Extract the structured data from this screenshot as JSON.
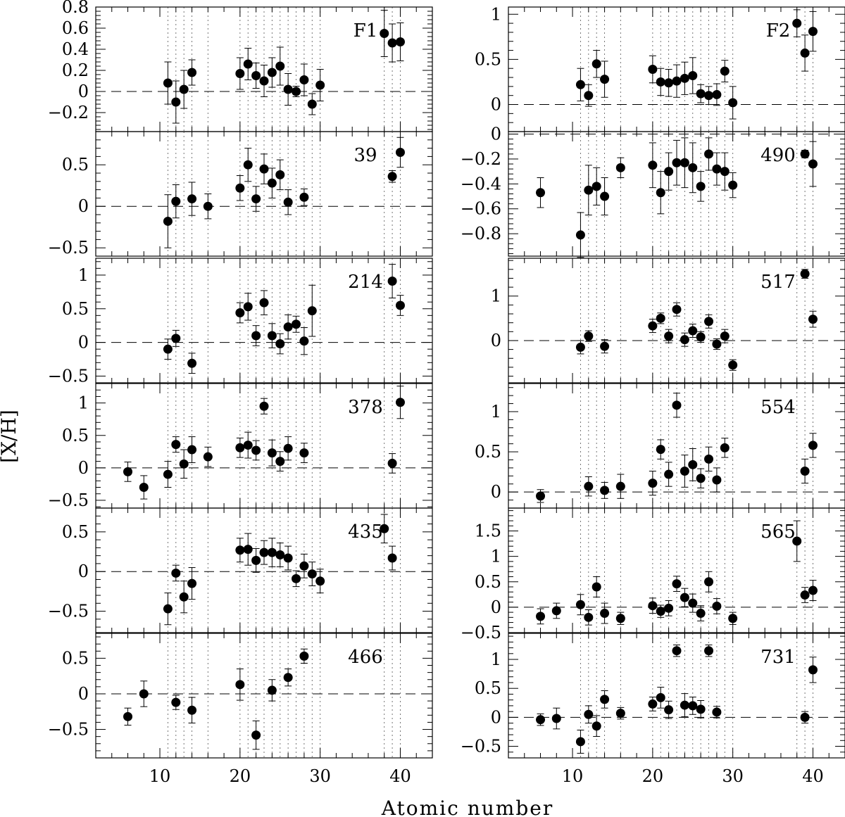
{
  "chart_data": {
    "type": "scatter",
    "ylabel": "[X/H]",
    "xlabel": "Atomic number",
    "xlim": [
      2,
      44
    ],
    "x_ticks": [
      10,
      20,
      30,
      40
    ],
    "reference_lines_x": [
      11,
      12,
      13,
      14,
      16,
      20,
      21,
      22,
      23,
      24,
      25,
      26,
      27,
      28,
      29,
      30,
      38,
      39,
      40
    ],
    "zero_line": 0,
    "panels": [
      {
        "label": "F1",
        "column": "left",
        "ylim": [
          -0.38,
          0.8
        ],
        "yticks": [
          -0.2,
          0,
          0.2,
          0.4,
          0.6,
          0.8
        ],
        "points": [
          [
            11,
            0.08,
            0.2
          ],
          [
            12,
            -0.1,
            0.2
          ],
          [
            13,
            0.02,
            0.18
          ],
          [
            14,
            0.18,
            0.12
          ],
          [
            20,
            0.17,
            0.15
          ],
          [
            21,
            0.26,
            0.15
          ],
          [
            22,
            0.15,
            0.12
          ],
          [
            23,
            0.1,
            0.15
          ],
          [
            24,
            0.18,
            0.14
          ],
          [
            25,
            0.24,
            0.18
          ],
          [
            26,
            0.02,
            0.15
          ],
          [
            27,
            0.0,
            0.05
          ],
          [
            28,
            0.11,
            0.15
          ],
          [
            29,
            -0.12,
            0.1
          ],
          [
            30,
            0.06,
            0.15
          ],
          [
            38,
            0.55,
            0.22
          ],
          [
            39,
            0.46,
            0.18
          ],
          [
            40,
            0.47,
            0.18
          ]
        ]
      },
      {
        "label": "F2",
        "column": "right",
        "ylim": [
          -0.3,
          1.08
        ],
        "yticks": [
          0,
          0.5,
          1
        ],
        "points": [
          [
            11,
            0.22,
            0.18
          ],
          [
            12,
            0.1,
            0.12
          ],
          [
            13,
            0.45,
            0.15
          ],
          [
            14,
            0.28,
            0.2
          ],
          [
            20,
            0.39,
            0.15
          ],
          [
            21,
            0.25,
            0.15
          ],
          [
            22,
            0.24,
            0.15
          ],
          [
            23,
            0.26,
            0.18
          ],
          [
            24,
            0.29,
            0.18
          ],
          [
            25,
            0.32,
            0.2
          ],
          [
            26,
            0.12,
            0.1
          ],
          [
            27,
            0.1,
            0.1
          ],
          [
            28,
            0.11,
            0.12
          ],
          [
            29,
            0.37,
            0.12
          ],
          [
            30,
            0.02,
            0.18
          ],
          [
            38,
            0.9,
            0.15
          ],
          [
            39,
            0.57,
            0.2
          ],
          [
            40,
            0.81,
            0.22
          ]
        ]
      },
      {
        "label": "39",
        "column": "left",
        "ylim": [
          -0.6,
          0.9
        ],
        "yticks": [
          -0.5,
          0,
          0.5
        ],
        "points": [
          [
            11,
            -0.18,
            0.32
          ],
          [
            12,
            0.06,
            0.2
          ],
          [
            14,
            0.09,
            0.2
          ],
          [
            16,
            0.0,
            0.15
          ],
          [
            20,
            0.22,
            0.15
          ],
          [
            21,
            0.5,
            0.2
          ],
          [
            22,
            0.09,
            0.15
          ],
          [
            23,
            0.45,
            0.18
          ],
          [
            24,
            0.28,
            0.18
          ],
          [
            25,
            0.38,
            0.18
          ],
          [
            26,
            0.05,
            0.15
          ],
          [
            28,
            0.11,
            0.1
          ],
          [
            39,
            0.36,
            0.07
          ],
          [
            40,
            0.65,
            0.18
          ]
        ]
      },
      {
        "label": "490",
        "column": "right",
        "ylim": [
          -0.98,
          0.02
        ],
        "yticks": [
          -0.8,
          -0.6,
          -0.4,
          -0.2,
          0
        ],
        "points": [
          [
            6,
            -0.47,
            0.12
          ],
          [
            11,
            -0.81,
            0.18
          ],
          [
            12,
            -0.45,
            0.2
          ],
          [
            13,
            -0.42,
            0.15
          ],
          [
            14,
            -0.5,
            0.15
          ],
          [
            16,
            -0.27,
            0.08
          ],
          [
            20,
            -0.25,
            0.18
          ],
          [
            21,
            -0.47,
            0.17
          ],
          [
            22,
            -0.3,
            0.15
          ],
          [
            23,
            -0.23,
            0.18
          ],
          [
            24,
            -0.23,
            0.2
          ],
          [
            25,
            -0.27,
            0.2
          ],
          [
            26,
            -0.42,
            0.12
          ],
          [
            27,
            -0.16,
            0.13
          ],
          [
            28,
            -0.28,
            0.13
          ],
          [
            29,
            -0.3,
            0.15
          ],
          [
            30,
            -0.41,
            0.1
          ],
          [
            39,
            -0.16,
            0.03
          ],
          [
            40,
            -0.24,
            0.18
          ]
        ]
      },
      {
        "label": "214",
        "column": "left",
        "ylim": [
          -0.6,
          1.25
        ],
        "yticks": [
          -0.5,
          0,
          0.5,
          1
        ],
        "points": [
          [
            11,
            -0.1,
            0.15
          ],
          [
            12,
            0.06,
            0.12
          ],
          [
            14,
            -0.31,
            0.15
          ],
          [
            20,
            0.44,
            0.15
          ],
          [
            21,
            0.53,
            0.2
          ],
          [
            22,
            0.1,
            0.15
          ],
          [
            23,
            0.59,
            0.18
          ],
          [
            24,
            0.1,
            0.18
          ],
          [
            25,
            -0.02,
            0.15
          ],
          [
            26,
            0.23,
            0.18
          ],
          [
            27,
            0.27,
            0.12
          ],
          [
            28,
            0.02,
            0.2
          ],
          [
            29,
            0.47,
            0.38
          ],
          [
            39,
            0.91,
            0.25
          ],
          [
            40,
            0.55,
            0.15
          ]
        ]
      },
      {
        "label": "517",
        "column": "right",
        "ylim": [
          -0.95,
          1.85
        ],
        "yticks": [
          0,
          1
        ],
        "points": [
          [
            11,
            -0.15,
            0.15
          ],
          [
            12,
            0.1,
            0.12
          ],
          [
            14,
            -0.13,
            0.15
          ],
          [
            20,
            0.33,
            0.15
          ],
          [
            21,
            0.5,
            0.12
          ],
          [
            22,
            0.1,
            0.15
          ],
          [
            23,
            0.7,
            0.15
          ],
          [
            24,
            0.02,
            0.15
          ],
          [
            25,
            0.22,
            0.15
          ],
          [
            26,
            0.08,
            0.12
          ],
          [
            27,
            0.43,
            0.15
          ],
          [
            28,
            -0.08,
            0.12
          ],
          [
            29,
            0.1,
            0.15
          ],
          [
            30,
            -0.55,
            0.12
          ],
          [
            39,
            1.5,
            0.1
          ],
          [
            40,
            0.48,
            0.18
          ]
        ]
      },
      {
        "label": "378",
        "column": "left",
        "ylim": [
          -0.62,
          1.3
        ],
        "yticks": [
          -0.5,
          0,
          0.5,
          1
        ],
        "points": [
          [
            6,
            -0.06,
            0.15
          ],
          [
            8,
            -0.3,
            0.18
          ],
          [
            11,
            -0.1,
            0.2
          ],
          [
            12,
            0.36,
            0.12
          ],
          [
            13,
            0.06,
            0.22
          ],
          [
            14,
            0.28,
            0.2
          ],
          [
            16,
            0.17,
            0.15
          ],
          [
            20,
            0.31,
            0.15
          ],
          [
            21,
            0.35,
            0.2
          ],
          [
            22,
            0.27,
            0.15
          ],
          [
            23,
            0.95,
            0.12
          ],
          [
            24,
            0.23,
            0.2
          ],
          [
            25,
            0.1,
            0.15
          ],
          [
            26,
            0.3,
            0.18
          ],
          [
            28,
            0.23,
            0.15
          ],
          [
            39,
            0.07,
            0.15
          ],
          [
            40,
            1.01,
            0.25
          ]
        ]
      },
      {
        "label": "554",
        "column": "right",
        "ylim": [
          -0.2,
          1.35
        ],
        "yticks": [
          0,
          0.5,
          1
        ],
        "points": [
          [
            6,
            -0.05,
            0.08
          ],
          [
            12,
            0.07,
            0.12
          ],
          [
            14,
            0.02,
            0.1
          ],
          [
            16,
            0.07,
            0.15
          ],
          [
            20,
            0.11,
            0.15
          ],
          [
            21,
            0.53,
            0.12
          ],
          [
            22,
            0.22,
            0.15
          ],
          [
            23,
            1.08,
            0.15
          ],
          [
            24,
            0.26,
            0.2
          ],
          [
            25,
            0.34,
            0.2
          ],
          [
            26,
            0.17,
            0.12
          ],
          [
            27,
            0.41,
            0.15
          ],
          [
            28,
            0.15,
            0.15
          ],
          [
            29,
            0.55,
            0.12
          ],
          [
            39,
            0.26,
            0.15
          ],
          [
            40,
            0.58,
            0.15
          ]
        ]
      },
      {
        "label": "435",
        "column": "left",
        "ylim": [
          -0.77,
          0.8
        ],
        "yticks": [
          -0.5,
          0,
          0.5
        ],
        "points": [
          [
            11,
            -0.47,
            0.2
          ],
          [
            12,
            -0.02,
            0.1
          ],
          [
            13,
            -0.32,
            0.2
          ],
          [
            14,
            -0.15,
            0.2
          ],
          [
            20,
            0.27,
            0.15
          ],
          [
            21,
            0.28,
            0.2
          ],
          [
            22,
            0.14,
            0.15
          ],
          [
            23,
            0.24,
            0.15
          ],
          [
            24,
            0.24,
            0.18
          ],
          [
            25,
            0.21,
            0.15
          ],
          [
            26,
            0.17,
            0.15
          ],
          [
            27,
            -0.09,
            0.1
          ],
          [
            28,
            0.07,
            0.15
          ],
          [
            29,
            -0.03,
            0.15
          ],
          [
            30,
            -0.12,
            0.15
          ],
          [
            38,
            0.54,
            0.18
          ],
          [
            39,
            0.17,
            0.15
          ]
        ]
      },
      {
        "label": "565",
        "column": "right",
        "ylim": [
          -0.5,
          1.95
        ],
        "yticks": [
          -0.5,
          0,
          0.5,
          1,
          1.5
        ],
        "points": [
          [
            6,
            -0.18,
            0.15
          ],
          [
            8,
            -0.07,
            0.15
          ],
          [
            11,
            0.05,
            0.2
          ],
          [
            12,
            -0.2,
            0.15
          ],
          [
            13,
            0.4,
            0.2
          ],
          [
            14,
            -0.12,
            0.2
          ],
          [
            16,
            -0.22,
            0.12
          ],
          [
            20,
            0.03,
            0.15
          ],
          [
            21,
            -0.08,
            0.12
          ],
          [
            22,
            -0.02,
            0.15
          ],
          [
            23,
            0.46,
            0.15
          ],
          [
            24,
            0.19,
            0.18
          ],
          [
            25,
            0.08,
            0.18
          ],
          [
            26,
            -0.12,
            0.15
          ],
          [
            27,
            0.5,
            0.2
          ],
          [
            28,
            0.02,
            0.15
          ],
          [
            30,
            -0.22,
            0.12
          ],
          [
            38,
            1.3,
            0.4
          ],
          [
            39,
            0.24,
            0.15
          ],
          [
            40,
            0.33,
            0.2
          ]
        ]
      },
      {
        "label": "466",
        "column": "left",
        "ylim": [
          -0.9,
          0.85
        ],
        "yticks": [
          -0.5,
          0,
          0.5
        ],
        "points": [
          [
            6,
            -0.32,
            0.12
          ],
          [
            8,
            0.0,
            0.18
          ],
          [
            12,
            -0.12,
            0.1
          ],
          [
            14,
            -0.23,
            0.18
          ],
          [
            20,
            0.13,
            0.22
          ],
          [
            22,
            -0.58,
            0.2
          ],
          [
            24,
            0.05,
            0.15
          ],
          [
            26,
            0.23,
            0.12
          ],
          [
            28,
            0.53,
            0.1
          ]
        ]
      },
      {
        "label": "731",
        "column": "right",
        "ylim": [
          -0.7,
          1.45
        ],
        "yticks": [
          -0.5,
          0,
          0.5,
          1
        ],
        "points": [
          [
            6,
            -0.04,
            0.1
          ],
          [
            8,
            -0.02,
            0.18
          ],
          [
            11,
            -0.42,
            0.2
          ],
          [
            12,
            0.05,
            0.15
          ],
          [
            13,
            -0.15,
            0.18
          ],
          [
            14,
            0.31,
            0.15
          ],
          [
            16,
            0.07,
            0.1
          ],
          [
            20,
            0.23,
            0.12
          ],
          [
            21,
            0.34,
            0.18
          ],
          [
            22,
            0.13,
            0.15
          ],
          [
            23,
            1.15,
            0.1
          ],
          [
            24,
            0.21,
            0.2
          ],
          [
            25,
            0.2,
            0.15
          ],
          [
            26,
            0.14,
            0.15
          ],
          [
            27,
            1.15,
            0.1
          ],
          [
            28,
            0.09,
            0.1
          ],
          [
            39,
            0.0,
            0.1
          ],
          [
            40,
            0.82,
            0.22
          ]
        ]
      }
    ]
  }
}
